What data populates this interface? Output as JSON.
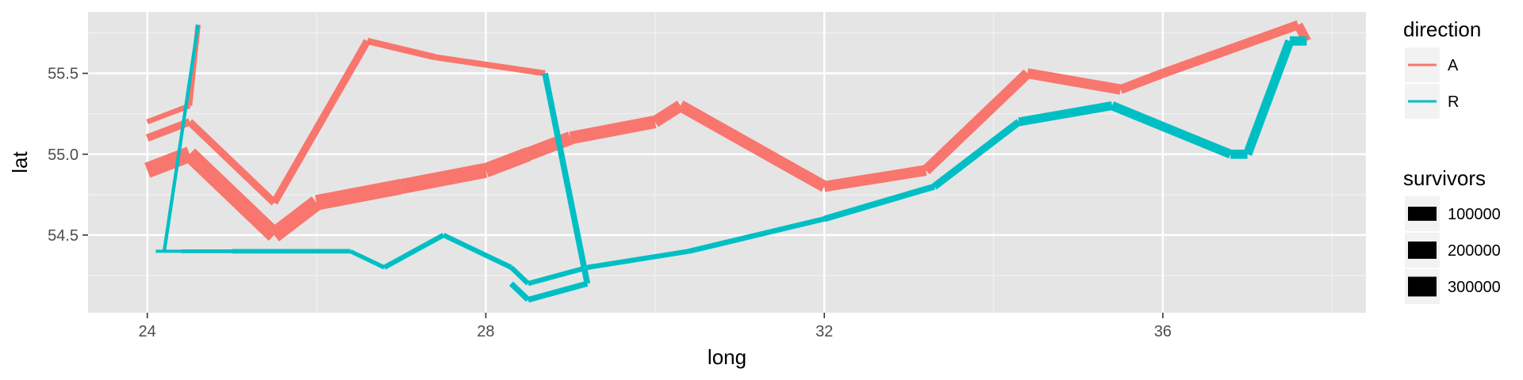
{
  "chart_data": {
    "type": "line",
    "xlabel": "long",
    "ylabel": "lat",
    "xlim": [
      23.3,
      38.4
    ],
    "ylim": [
      54.02,
      55.88
    ],
    "x_ticks": [
      24,
      28,
      32,
      36
    ],
    "y_ticks": [
      54.5,
      55.0,
      55.5
    ],
    "x_tick_labels": [
      "24",
      "28",
      "32",
      "36"
    ],
    "y_tick_labels": [
      "54.5",
      "55.0",
      "55.5"
    ],
    "grid": true,
    "panel_background": "#e5e5e5",
    "legend_position": "right",
    "color_legend": {
      "title": "direction",
      "entries": [
        {
          "label": "A",
          "color": "#f8766d"
        },
        {
          "label": "R",
          "color": "#00bfc4"
        }
      ]
    },
    "size_legend": {
      "title": "survivors",
      "entries": [
        {
          "label": "100000",
          "value": 100000
        },
        {
          "label": "200000",
          "value": 200000
        },
        {
          "label": "300000",
          "value": 300000
        }
      ]
    },
    "series": [
      {
        "direction": "A",
        "group": 1,
        "color": "#f8766d",
        "points": [
          {
            "x": 24.0,
            "y": 54.9,
            "survivors": 340000
          },
          {
            "x": 24.5,
            "y": 55.0,
            "survivors": 340000
          },
          {
            "x": 25.5,
            "y": 54.5,
            "survivors": 340000
          },
          {
            "x": 26.0,
            "y": 54.7,
            "survivors": 320000
          },
          {
            "x": 27.0,
            "y": 54.8,
            "survivors": 300000
          },
          {
            "x": 28.0,
            "y": 54.9,
            "survivors": 280000
          },
          {
            "x": 28.5,
            "y": 55.0,
            "survivors": 240000
          },
          {
            "x": 29.0,
            "y": 55.1,
            "survivors": 210000
          },
          {
            "x": 30.0,
            "y": 55.2,
            "survivors": 180000
          },
          {
            "x": 30.3,
            "y": 55.3,
            "survivors": 175000
          },
          {
            "x": 32.0,
            "y": 54.8,
            "survivors": 145000
          },
          {
            "x": 33.2,
            "y": 54.9,
            "survivors": 140000
          },
          {
            "x": 34.4,
            "y": 55.5,
            "survivors": 127100
          },
          {
            "x": 35.5,
            "y": 55.4,
            "survivors": 100000
          },
          {
            "x": 36.0,
            "y": 55.5,
            "survivors": 100000
          },
          {
            "x": 37.6,
            "y": 55.8,
            "survivors": 100000
          },
          {
            "x": 37.7,
            "y": 55.7,
            "survivors": 100000
          }
        ]
      },
      {
        "direction": "R",
        "group": 1,
        "color": "#00bfc4",
        "points": [
          {
            "x": 37.7,
            "y": 55.7,
            "survivors": 100000
          },
          {
            "x": 37.5,
            "y": 55.7,
            "survivors": 98000
          },
          {
            "x": 37.0,
            "y": 55.0,
            "survivors": 97000
          },
          {
            "x": 36.8,
            "y": 55.0,
            "survivors": 96000
          },
          {
            "x": 35.4,
            "y": 55.3,
            "survivors": 87000
          },
          {
            "x": 34.3,
            "y": 55.2,
            "survivors": 55000
          },
          {
            "x": 33.3,
            "y": 54.8,
            "survivors": 37000
          },
          {
            "x": 32.0,
            "y": 54.6,
            "survivors": 24000
          },
          {
            "x": 30.4,
            "y": 54.4,
            "survivors": 20000
          },
          {
            "x": 29.2,
            "y": 54.3,
            "survivors": 20000
          },
          {
            "x": 28.5,
            "y": 54.2,
            "survivors": 20000
          },
          {
            "x": 28.3,
            "y": 54.3,
            "survivors": 20000
          },
          {
            "x": 27.5,
            "y": 54.5,
            "survivors": 20000
          },
          {
            "x": 26.8,
            "y": 54.3,
            "survivors": 12000
          },
          {
            "x": 26.4,
            "y": 54.4,
            "survivors": 14000
          },
          {
            "x": 25.0,
            "y": 54.4,
            "survivors": 8000
          },
          {
            "x": 24.4,
            "y": 54.4,
            "survivors": 4000
          },
          {
            "x": 24.2,
            "y": 54.4,
            "survivors": 4000
          },
          {
            "x": 24.1,
            "y": 54.4,
            "survivors": 4000
          }
        ]
      },
      {
        "direction": "A",
        "group": 2,
        "color": "#f8766d",
        "points": [
          {
            "x": 24.0,
            "y": 55.1,
            "survivors": 60000
          },
          {
            "x": 24.5,
            "y": 55.2,
            "survivors": 60000
          },
          {
            "x": 25.5,
            "y": 54.7,
            "survivors": 60000
          },
          {
            "x": 26.6,
            "y": 55.7,
            "survivors": 40000
          },
          {
            "x": 27.4,
            "y": 55.6,
            "survivors": 33000
          },
          {
            "x": 28.7,
            "y": 55.5,
            "survivors": 33000
          }
        ]
      },
      {
        "direction": "R",
        "group": 2,
        "color": "#00bfc4",
        "points": [
          {
            "x": 28.7,
            "y": 55.5,
            "survivors": 33000
          },
          {
            "x": 29.2,
            "y": 54.2,
            "survivors": 30000
          },
          {
            "x": 28.5,
            "y": 54.1,
            "survivors": 30000
          },
          {
            "x": 28.3,
            "y": 54.2,
            "survivors": 28000
          }
        ]
      },
      {
        "direction": "A",
        "group": 3,
        "color": "#f8766d",
        "points": [
          {
            "x": 24.0,
            "y": 55.2,
            "survivors": 22000
          },
          {
            "x": 24.5,
            "y": 55.3,
            "survivors": 22000
          },
          {
            "x": 24.6,
            "y": 55.8,
            "survivors": 6000
          }
        ]
      },
      {
        "direction": "R",
        "group": 3,
        "color": "#00bfc4",
        "points": [
          {
            "x": 24.6,
            "y": 55.8,
            "survivors": 6000
          },
          {
            "x": 24.2,
            "y": 54.4,
            "survivors": 6000
          }
        ]
      }
    ]
  }
}
